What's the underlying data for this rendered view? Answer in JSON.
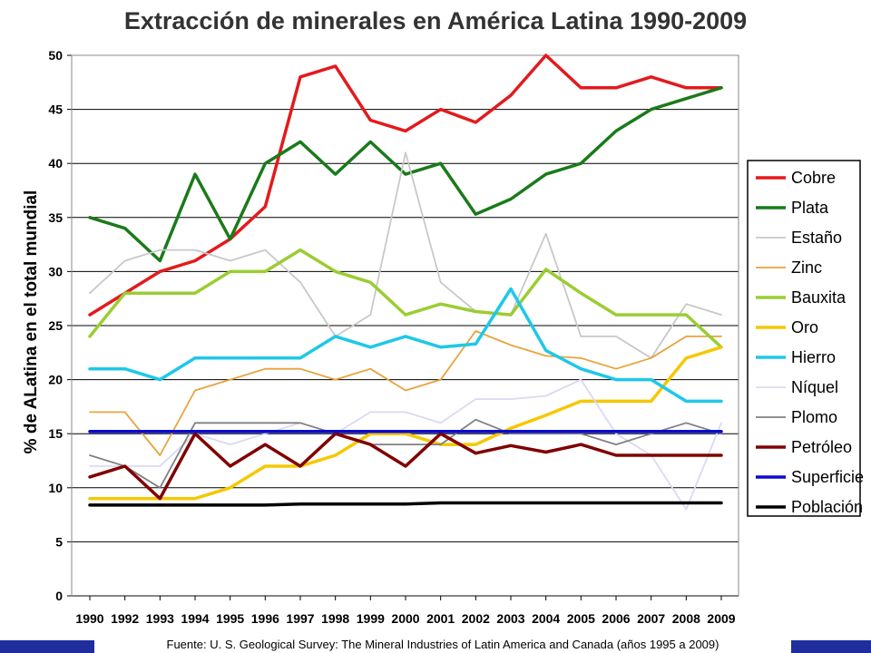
{
  "chart_data": {
    "type": "line",
    "title": "Extracción de minerales en América Latina 1990-2009",
    "ylabel": "% de ALatina en el total mundial",
    "xlabel": "",
    "ylim": [
      0,
      50
    ],
    "yticks": [
      0,
      5,
      10,
      15,
      20,
      25,
      30,
      35,
      40,
      45,
      50
    ],
    "grid": true,
    "legend_position": "right",
    "x": [
      "1990",
      "1992",
      "1993",
      "1994",
      "1995",
      "1996",
      "1997",
      "1998",
      "1999",
      "2000",
      "2001",
      "2002",
      "2003",
      "2004",
      "2005",
      "2006",
      "2007",
      "2008",
      "2009"
    ],
    "series": [
      {
        "name": "Cobre",
        "color": "#e31a1c",
        "width": 3.5,
        "values": [
          26,
          28,
          30,
          31,
          33,
          36,
          48,
          49,
          44,
          43,
          45,
          43.8,
          46.3,
          50,
          47,
          47,
          48,
          47,
          47
        ]
      },
      {
        "name": "Plata",
        "color": "#1a7a1a",
        "width": 3.5,
        "values": [
          35,
          34,
          31,
          39,
          33,
          40,
          42,
          39,
          42,
          39,
          40,
          35.3,
          36.7,
          39,
          40,
          43,
          45,
          46,
          47
        ]
      },
      {
        "name": "Estaño",
        "color": "#c8c8c8",
        "width": 1.8,
        "values": [
          28,
          31,
          32,
          32,
          31,
          32,
          29,
          24,
          26,
          41,
          29,
          26.3,
          26,
          33.5,
          24,
          24,
          22,
          27,
          26
        ]
      },
      {
        "name": "Zinc",
        "color": "#e8a33c",
        "width": 1.8,
        "values": [
          17,
          17,
          13,
          19,
          20,
          21,
          21,
          20,
          21,
          19,
          20,
          24.5,
          23.2,
          22.2,
          22,
          21,
          22,
          24,
          24
        ]
      },
      {
        "name": "Bauxita",
        "color": "#9acd32",
        "width": 3.5,
        "values": [
          24,
          28,
          28,
          28,
          30,
          30,
          32,
          30,
          29,
          26,
          27,
          26.3,
          26,
          30.2,
          28,
          26,
          26,
          26,
          23
        ]
      },
      {
        "name": "Oro",
        "color": "#f5c800",
        "width": 3.5,
        "values": [
          9,
          9,
          9,
          9,
          10,
          12,
          12,
          13,
          15,
          15,
          14,
          14,
          15.5,
          16.7,
          18,
          18,
          18,
          22,
          23
        ]
      },
      {
        "name": "Hierro",
        "color": "#1ec8e8",
        "width": 3.5,
        "values": [
          21,
          21,
          20,
          22,
          22,
          22,
          22,
          24,
          23,
          24,
          23,
          23.3,
          28.4,
          22.7,
          21,
          20,
          20,
          18,
          18
        ]
      },
      {
        "name": "Níquel",
        "color": "#d9d9f3",
        "width": 1.8,
        "values": [
          12,
          12,
          12,
          15,
          14,
          15,
          16,
          15,
          17,
          17,
          16,
          18.2,
          18.2,
          18.5,
          20,
          15,
          13,
          8,
          16
        ]
      },
      {
        "name": "Plomo",
        "color": "#808080",
        "width": 1.8,
        "values": [
          13,
          12,
          10,
          16,
          16,
          16,
          16,
          15,
          14,
          14,
          14,
          16.3,
          15,
          15,
          15,
          14,
          15,
          16,
          15
        ]
      },
      {
        "name": "Petróleo",
        "color": "#800000",
        "width": 3.5,
        "values": [
          11,
          12,
          9,
          15,
          12,
          14,
          12,
          15,
          14,
          12,
          15,
          13.2,
          13.9,
          13.3,
          14,
          13,
          13,
          13,
          13
        ]
      },
      {
        "name": "Superficie",
        "color": "#0a0ad0",
        "width": 3.5,
        "values": [
          15.2,
          15.2,
          15.2,
          15.2,
          15.2,
          15.2,
          15.2,
          15.2,
          15.2,
          15.2,
          15.2,
          15.2,
          15.2,
          15.2,
          15.2,
          15.2,
          15.2,
          15.2,
          15.2
        ]
      },
      {
        "name": "Población",
        "color": "#000000",
        "width": 3.5,
        "values": [
          8.4,
          8.4,
          8.4,
          8.4,
          8.4,
          8.4,
          8.5,
          8.5,
          8.5,
          8.5,
          8.6,
          8.6,
          8.6,
          8.6,
          8.6,
          8.6,
          8.6,
          8.6,
          8.6
        ]
      }
    ]
  },
  "footer": {
    "source": "Fuente: U. S. Geological Survey: The Mineral Industries of Latin America and Canada (años 1995 a 2009)"
  }
}
